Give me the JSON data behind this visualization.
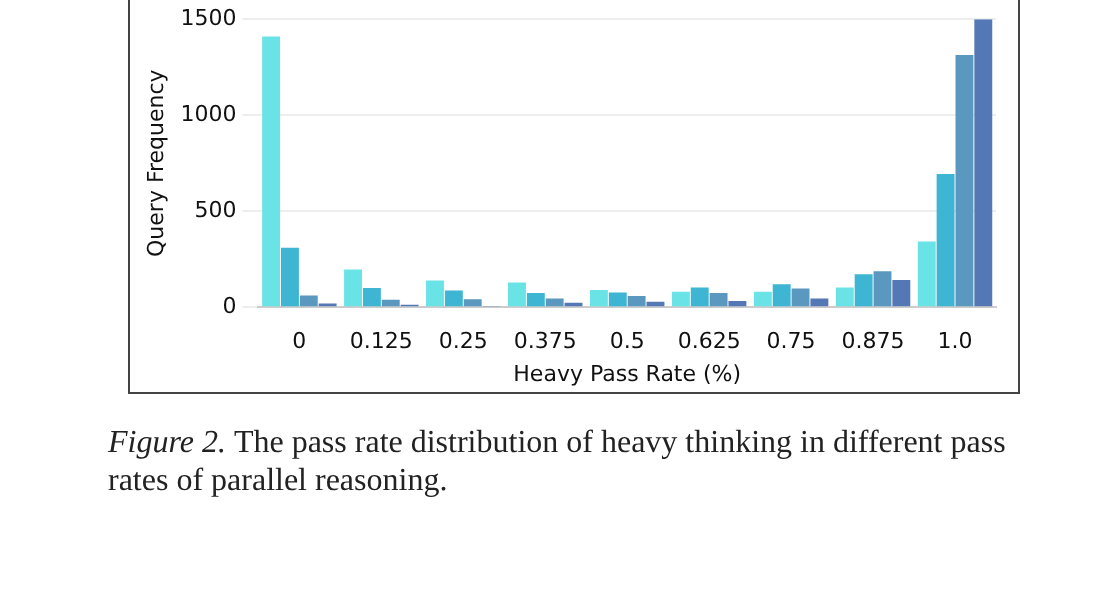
{
  "chart_data": {
    "type": "bar",
    "xlabel": "Heavy Pass Rate (%)",
    "ylabel": "Query Frequency",
    "categories": [
      "0",
      "0.125",
      "0.25",
      "0.375",
      "0.5",
      "0.625",
      "0.75",
      "0.875",
      "1.0"
    ],
    "series": [
      {
        "color": "#6ae3e6",
        "values": [
          1410,
          197,
          139,
          129,
          90,
          81,
          81,
          103,
          342
        ]
      },
      {
        "color": "#3db5d3",
        "values": [
          310,
          100,
          87,
          74,
          77,
          103,
          119,
          171,
          694
        ]
      },
      {
        "color": "#5a98bf",
        "values": [
          61,
          39,
          42,
          45,
          58,
          74,
          97,
          187,
          1313
        ]
      },
      {
        "color": "#5378b5",
        "values": [
          19,
          13,
          3,
          23,
          29,
          32,
          45,
          142,
          1500
        ]
      }
    ],
    "ylim": [
      0,
      1500
    ],
    "yticks": [
      0,
      500,
      1000,
      1500
    ],
    "grid": "y",
    "legend": false,
    "annotations": [
      "Figure 2.",
      "The pass rate distribution of heavy thinking in different pass rates of parallel reasoning."
    ]
  }
}
